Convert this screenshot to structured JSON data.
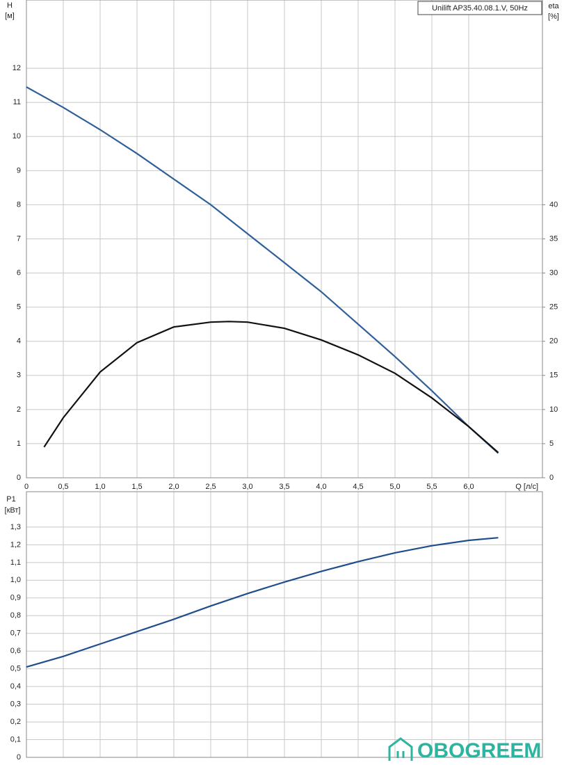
{
  "chart_data": [
    {
      "type": "line",
      "title": "Unilift AP35.40.08.1.V, 50Hz",
      "ylabel": "H",
      "yunit": "[м]",
      "y2label": "eta",
      "y2unit": "[%]",
      "xlabel": "Q [л/с]",
      "xlim": [
        0,
        7
      ],
      "ylim": [
        0,
        14
      ],
      "y2lim": [
        0,
        70
      ],
      "grid": true,
      "xticks": [
        0,
        {
          "value": 0.5,
          "label": "0,5"
        },
        {
          "value": 1,
          "label": "1,0"
        },
        {
          "value": 1.5,
          "label": "1,5"
        },
        {
          "value": 2,
          "label": "2,0"
        },
        {
          "value": 2.5,
          "label": "2,5"
        },
        {
          "value": 3,
          "label": "3,0"
        },
        {
          "value": 3.5,
          "label": "3,5"
        },
        {
          "value": 4,
          "label": "4,0"
        },
        {
          "value": 4.5,
          "label": "4,5"
        },
        {
          "value": 5,
          "label": "5,0"
        },
        {
          "value": 5.5,
          "label": "5,5"
        },
        {
          "value": 6,
          "label": "6,0"
        }
      ],
      "yticks": [
        0,
        1,
        2,
        3,
        4,
        5,
        6,
        7,
        8,
        9,
        10,
        11,
        12
      ],
      "y2ticks": [
        0,
        5,
        10,
        15,
        20,
        25,
        30,
        35,
        40
      ],
      "series": [
        {
          "color": "#2f5f9a",
          "x": [
            0,
            0.5,
            1,
            1.5,
            2,
            2.5,
            3,
            3.5,
            4,
            4.5,
            5,
            5.5,
            6,
            6.4
          ],
          "values": [
            11.45,
            10.85,
            10.2,
            9.5,
            8.75,
            8.0,
            7.15,
            6.3,
            5.45,
            4.5,
            3.55,
            2.55,
            1.5,
            0.72
          ]
        },
        {
          "color": "#111111",
          "axis": "y2",
          "x": [
            0.24,
            0.5,
            1,
            1.5,
            2,
            2.5,
            2.75,
            3,
            3.5,
            4,
            4.5,
            5,
            5.5,
            6,
            6.4
          ],
          "values": [
            4.5,
            8.8,
            15.5,
            19.8,
            22.1,
            22.8,
            22.9,
            22.8,
            21.9,
            20.2,
            18.0,
            15.3,
            11.7,
            7.5,
            3.7
          ]
        }
      ]
    },
    {
      "type": "line",
      "ylabel": "P1",
      "yunit": "[кВт]",
      "xlim": [
        0,
        7
      ],
      "ylim": [
        0,
        1.5
      ],
      "grid": true,
      "xticks": [
        0,
        0.5,
        1,
        1.5,
        2,
        2.5,
        3,
        3.5,
        4,
        4.5,
        5,
        5.5,
        6,
        6.5
      ],
      "yticks": [
        0,
        {
          "value": 0.1,
          "label": "0,1"
        },
        {
          "value": 0.2,
          "label": "0,2"
        },
        {
          "value": 0.3,
          "label": "0,3"
        },
        {
          "value": 0.4,
          "label": "0,4"
        },
        {
          "value": 0.5,
          "label": "0,5"
        },
        {
          "value": 0.6,
          "label": "0,6"
        },
        {
          "value": 0.7,
          "label": "0,7"
        },
        {
          "value": 0.8,
          "label": "0,8"
        },
        {
          "value": 0.9,
          "label": "0,9"
        },
        {
          "value": 1.0,
          "label": "1,0"
        },
        {
          "value": 1.1,
          "label": "1,1"
        },
        {
          "value": 1.2,
          "label": "1,2"
        },
        {
          "value": 1.3,
          "label": "1,3"
        }
      ],
      "series": [
        {
          "color": "#1f4e8c",
          "x": [
            0,
            0.5,
            1,
            1.5,
            2,
            2.5,
            3,
            3.5,
            4,
            4.5,
            5,
            5.5,
            6,
            6.4
          ],
          "values": [
            0.51,
            0.57,
            0.64,
            0.71,
            0.78,
            0.855,
            0.925,
            0.99,
            1.05,
            1.105,
            1.155,
            1.195,
            1.225,
            1.24
          ]
        }
      ]
    }
  ],
  "brand": "OBOGREEM"
}
